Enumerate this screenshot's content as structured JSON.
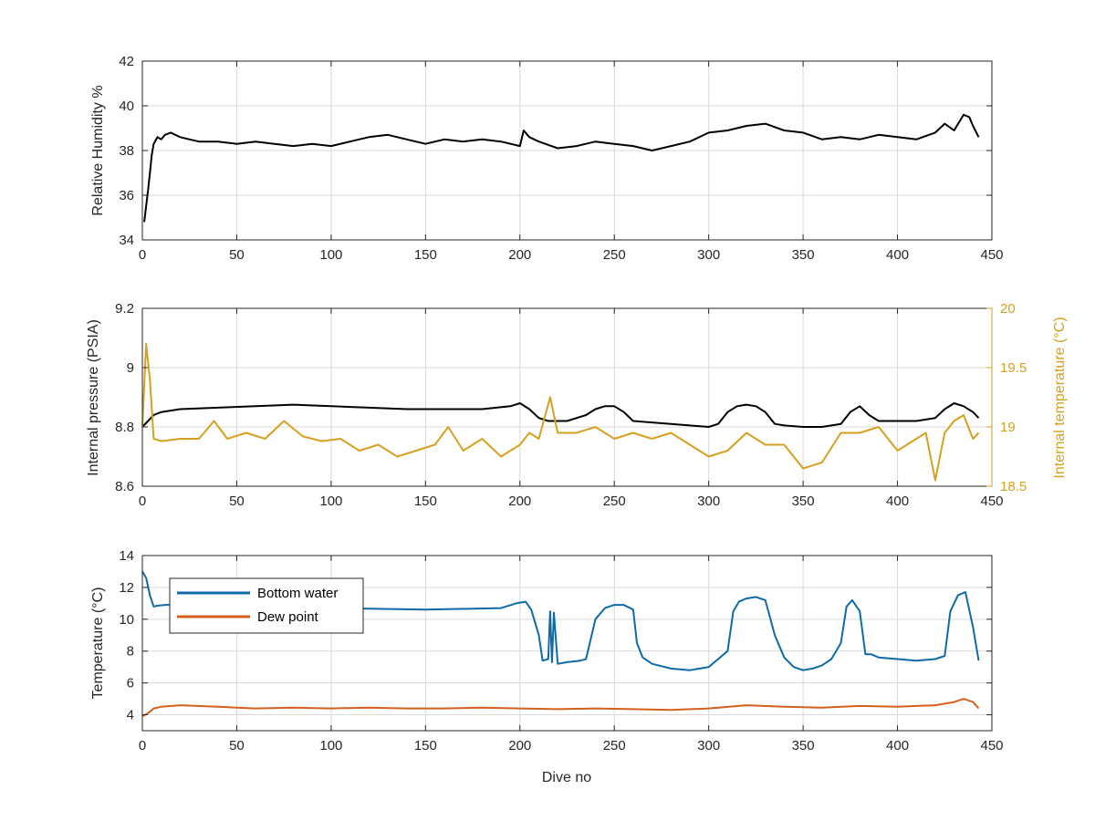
{
  "chart_data": [
    {
      "type": "line",
      "title": "",
      "xlabel": "",
      "ylabel": "Relative Humidity %",
      "xlim": [
        0,
        450
      ],
      "ylim": [
        34,
        42
      ],
      "xticks": [
        0,
        50,
        100,
        150,
        200,
        250,
        300,
        350,
        400,
        450
      ],
      "yticks": [
        34,
        36,
        38,
        40,
        42
      ],
      "grid": true,
      "series": [
        {
          "color": "#000000",
          "axis": "left",
          "x": [
            1,
            2,
            3,
            4,
            5,
            6,
            8,
            10,
            12,
            15,
            20,
            25,
            30,
            40,
            50,
            60,
            70,
            80,
            90,
            100,
            110,
            120,
            130,
            140,
            150,
            160,
            170,
            180,
            190,
            200,
            202,
            205,
            210,
            220,
            230,
            240,
            250,
            260,
            270,
            280,
            290,
            300,
            310,
            320,
            330,
            340,
            350,
            360,
            370,
            380,
            390,
            400,
            410,
            420,
            425,
            430,
            435,
            438,
            440,
            443
          ],
          "y": [
            34.8,
            35.5,
            36.2,
            37.0,
            37.8,
            38.3,
            38.6,
            38.5,
            38.7,
            38.8,
            38.6,
            38.5,
            38.4,
            38.4,
            38.3,
            38.4,
            38.3,
            38.2,
            38.3,
            38.2,
            38.4,
            38.6,
            38.7,
            38.5,
            38.3,
            38.5,
            38.4,
            38.5,
            38.4,
            38.2,
            38.9,
            38.6,
            38.4,
            38.1,
            38.2,
            38.4,
            38.3,
            38.2,
            38.0,
            38.2,
            38.4,
            38.8,
            38.9,
            39.1,
            39.2,
            38.9,
            38.8,
            38.5,
            38.6,
            38.5,
            38.7,
            38.6,
            38.5,
            38.8,
            39.2,
            38.9,
            39.6,
            39.5,
            39.1,
            38.6
          ]
        }
      ]
    },
    {
      "type": "line",
      "title": "",
      "xlabel": "",
      "ylabel": "Internal pressure (PSIA)",
      "y2label": "Internal temperature (°C)",
      "xlim": [
        0,
        450
      ],
      "ylim": [
        8.6,
        9.2
      ],
      "y2lim": [
        18.5,
        20
      ],
      "xticks": [
        0,
        50,
        100,
        150,
        200,
        250,
        300,
        350,
        400,
        450
      ],
      "yticks": [
        8.6,
        8.8,
        9.0,
        9.2
      ],
      "ytick_labels": [
        "8.6",
        "8.8",
        "9",
        "9.2"
      ],
      "y2ticks": [
        18.5,
        19.0,
        19.5,
        20.0
      ],
      "y2tick_labels": [
        "18.5",
        "19",
        "19.5",
        "20"
      ],
      "grid": true,
      "series": [
        {
          "color": "#000000",
          "axis": "left",
          "x": [
            0,
            3,
            6,
            10,
            20,
            40,
            60,
            80,
            100,
            120,
            140,
            160,
            180,
            195,
            200,
            205,
            210,
            215,
            225,
            235,
            240,
            245,
            250,
            255,
            260,
            270,
            280,
            290,
            300,
            305,
            310,
            315,
            320,
            325,
            330,
            335,
            340,
            350,
            360,
            370,
            375,
            380,
            385,
            390,
            400,
            410,
            420,
            425,
            430,
            435,
            440,
            443
          ],
          "y": [
            8.8,
            8.82,
            8.84,
            8.85,
            8.86,
            8.865,
            8.87,
            8.875,
            8.87,
            8.865,
            8.86,
            8.86,
            8.86,
            8.87,
            8.88,
            8.86,
            8.83,
            8.82,
            8.82,
            8.84,
            8.86,
            8.87,
            8.87,
            8.85,
            8.82,
            8.815,
            8.81,
            8.805,
            8.8,
            8.81,
            8.85,
            8.87,
            8.875,
            8.87,
            8.85,
            8.81,
            8.805,
            8.8,
            8.8,
            8.81,
            8.85,
            8.87,
            8.84,
            8.82,
            8.82,
            8.82,
            8.83,
            8.86,
            8.88,
            8.87,
            8.85,
            8.83
          ]
        },
        {
          "color": "#d6a020",
          "axis": "right",
          "x": [
            0,
            2,
            4,
            6,
            10,
            20,
            30,
            38,
            45,
            55,
            65,
            75,
            85,
            95,
            105,
            115,
            125,
            135,
            145,
            155,
            162,
            170,
            180,
            190,
            200,
            205,
            210,
            216,
            220,
            230,
            240,
            250,
            260,
            270,
            280,
            290,
            300,
            310,
            320,
            330,
            340,
            350,
            360,
            370,
            380,
            390,
            400,
            410,
            415,
            420,
            425,
            430,
            435,
            440,
            443
          ],
          "y": [
            19.0,
            19.7,
            19.4,
            18.9,
            18.88,
            18.9,
            18.9,
            19.05,
            18.9,
            18.95,
            18.9,
            19.05,
            18.92,
            18.88,
            18.9,
            18.8,
            18.85,
            18.75,
            18.8,
            18.85,
            19.0,
            18.8,
            18.9,
            18.75,
            18.85,
            18.95,
            18.9,
            19.25,
            18.95,
            18.95,
            19.0,
            18.9,
            18.95,
            18.9,
            18.95,
            18.85,
            18.75,
            18.8,
            18.95,
            18.85,
            18.85,
            18.65,
            18.7,
            18.95,
            18.95,
            19.0,
            18.8,
            18.9,
            18.95,
            18.55,
            18.95,
            19.05,
            19.1,
            18.9,
            18.95
          ]
        }
      ]
    },
    {
      "type": "line",
      "title": "",
      "xlabel": "Dive no",
      "ylabel": "Temperature (°C)",
      "xlim": [
        0,
        450
      ],
      "ylim": [
        3,
        14
      ],
      "xticks": [
        0,
        50,
        100,
        150,
        200,
        250,
        300,
        350,
        400,
        450
      ],
      "yticks": [
        4,
        6,
        8,
        10,
        12,
        14
      ],
      "grid": true,
      "legend": "top-left",
      "series": [
        {
          "name": "Bottom water",
          "color": "#0f6aa8",
          "axis": "left",
          "x": [
            0,
            2,
            4,
            6,
            8,
            12,
            20,
            50,
            100,
            150,
            190,
            198,
            203,
            206,
            210,
            212,
            215,
            216,
            217,
            218,
            220,
            225,
            232,
            235,
            240,
            245,
            250,
            255,
            260,
            262,
            265,
            270,
            280,
            290,
            300,
            305,
            310,
            313,
            316,
            320,
            325,
            330,
            335,
            340,
            345,
            350,
            355,
            360,
            365,
            370,
            373,
            376,
            380,
            383,
            386,
            390,
            400,
            410,
            420,
            425,
            428,
            432,
            436,
            440,
            443
          ],
          "y": [
            13.0,
            12.6,
            11.5,
            10.8,
            10.85,
            10.9,
            10.9,
            10.8,
            10.7,
            10.6,
            10.7,
            11.0,
            11.1,
            10.6,
            9.0,
            7.4,
            7.5,
            10.5,
            7.3,
            10.4,
            7.2,
            7.3,
            7.4,
            7.5,
            10.0,
            10.7,
            10.9,
            10.9,
            10.6,
            8.5,
            7.6,
            7.2,
            6.9,
            6.8,
            7.0,
            7.5,
            8.0,
            10.5,
            11.1,
            11.3,
            11.4,
            11.2,
            9.0,
            7.6,
            7.0,
            6.8,
            6.9,
            7.1,
            7.5,
            8.5,
            10.8,
            11.2,
            10.5,
            7.8,
            7.8,
            7.6,
            7.5,
            7.4,
            7.5,
            7.7,
            10.5,
            11.5,
            11.7,
            9.5,
            7.4
          ]
        },
        {
          "name": "Dew point",
          "color": "#d4601d",
          "axis": "left",
          "x": [
            0,
            3,
            6,
            10,
            20,
            40,
            60,
            80,
            100,
            120,
            140,
            160,
            180,
            200,
            220,
            240,
            260,
            280,
            300,
            320,
            340,
            360,
            380,
            400,
            420,
            430,
            435,
            440,
            443
          ],
          "y": [
            3.9,
            4.1,
            4.4,
            4.5,
            4.6,
            4.5,
            4.4,
            4.45,
            4.4,
            4.45,
            4.4,
            4.4,
            4.45,
            4.4,
            4.35,
            4.4,
            4.35,
            4.3,
            4.4,
            4.6,
            4.5,
            4.45,
            4.55,
            4.5,
            4.6,
            4.8,
            5.0,
            4.8,
            4.4
          ]
        }
      ]
    }
  ]
}
